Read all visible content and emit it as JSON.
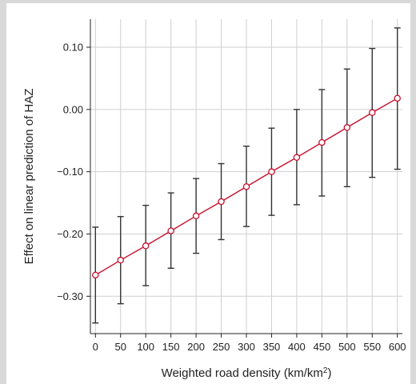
{
  "chart_data": {
    "type": "line",
    "title": "",
    "xlabel": "Weighted road density (km/km",
    "xlabel_superscript": "2",
    "xlabel_suffix": ")",
    "ylabel": "Effect on linear prediction of HAZ",
    "x": [
      0,
      50,
      100,
      150,
      200,
      250,
      300,
      350,
      400,
      450,
      500,
      550,
      600
    ],
    "x_tick_labels": [
      "0",
      "50",
      "100",
      "150",
      "200",
      "250",
      "300",
      "350",
      "400",
      "450",
      "500",
      "550",
      "600"
    ],
    "y_ticks": [
      0.1,
      0.0,
      -0.1,
      -0.2,
      -0.3
    ],
    "y_tick_labels": [
      "0.10",
      "0.00",
      "−0.10",
      "−0.20",
      "−0.30"
    ],
    "xlim": [
      -10,
      610
    ],
    "ylim": [
      -0.36,
      0.145
    ],
    "grid": true,
    "series": [
      {
        "values": [
          -0.266,
          -0.242,
          -0.219,
          -0.195,
          -0.171,
          -0.148,
          -0.124,
          -0.1,
          -0.077,
          -0.053,
          -0.029,
          -0.005,
          0.018
        ],
        "ci_low": [
          -0.343,
          -0.312,
          -0.283,
          -0.255,
          -0.231,
          -0.209,
          -0.188,
          -0.17,
          -0.153,
          -0.139,
          -0.124,
          -0.109,
          -0.096
        ],
        "ci_high": [
          -0.189,
          -0.172,
          -0.154,
          -0.134,
          -0.111,
          -0.087,
          -0.059,
          -0.03,
          0.0,
          0.032,
          0.065,
          0.098,
          0.131
        ],
        "line_color": "#c8102e",
        "errorbar_color": "#333333"
      }
    ],
    "grid_color": "#cfcfcf",
    "axis_color": "#222222"
  }
}
